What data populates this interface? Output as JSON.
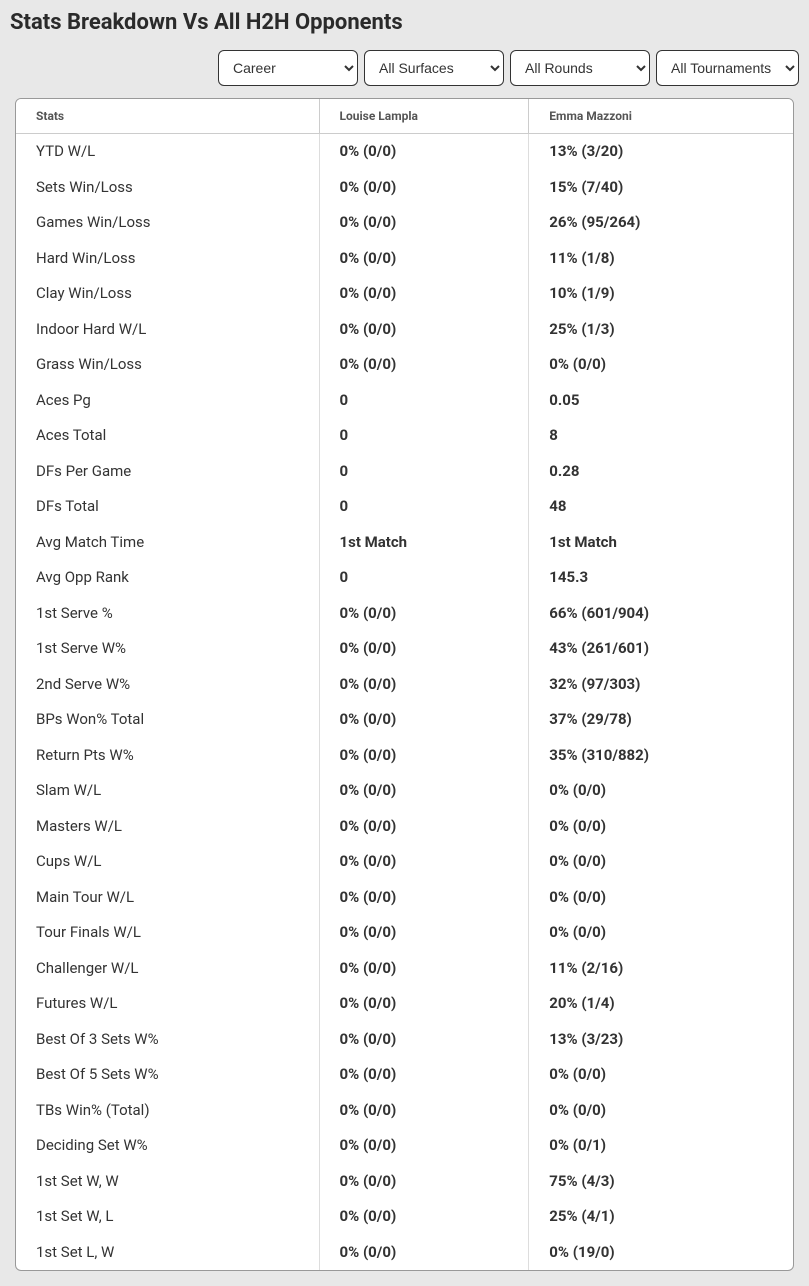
{
  "title": "Stats Breakdown Vs All H2H Opponents",
  "filters": {
    "period": {
      "selected": "Career"
    },
    "surface": {
      "selected": "All Surfaces"
    },
    "round": {
      "selected": "All Rounds"
    },
    "tournament": {
      "selected": "All Tournaments"
    }
  },
  "table": {
    "columns": {
      "stats": "Stats",
      "player1": "Louise Lampla",
      "player2": "Emma Mazzoni"
    },
    "rows": [
      {
        "label": "YTD W/L",
        "p1": "0% (0/0)",
        "p2": "13% (3/20)"
      },
      {
        "label": "Sets Win/Loss",
        "p1": "0% (0/0)",
        "p2": "15% (7/40)"
      },
      {
        "label": "Games Win/Loss",
        "p1": "0% (0/0)",
        "p2": "26% (95/264)"
      },
      {
        "label": "Hard Win/Loss",
        "p1": "0% (0/0)",
        "p2": "11% (1/8)"
      },
      {
        "label": "Clay Win/Loss",
        "p1": "0% (0/0)",
        "p2": "10% (1/9)"
      },
      {
        "label": "Indoor Hard W/L",
        "p1": "0% (0/0)",
        "p2": "25% (1/3)"
      },
      {
        "label": "Grass Win/Loss",
        "p1": "0% (0/0)",
        "p2": "0% (0/0)"
      },
      {
        "label": "Aces Pg",
        "p1": "0",
        "p2": "0.05"
      },
      {
        "label": "Aces Total",
        "p1": "0",
        "p2": "8"
      },
      {
        "label": "DFs Per Game",
        "p1": "0",
        "p2": "0.28"
      },
      {
        "label": "DFs Total",
        "p1": "0",
        "p2": "48"
      },
      {
        "label": "Avg Match Time",
        "p1": "1st Match",
        "p2": "1st Match"
      },
      {
        "label": "Avg Opp Rank",
        "p1": "0",
        "p2": "145.3"
      },
      {
        "label": "1st Serve %",
        "p1": "0% (0/0)",
        "p2": "66% (601/904)"
      },
      {
        "label": "1st Serve W%",
        "p1": "0% (0/0)",
        "p2": "43% (261/601)"
      },
      {
        "label": "2nd Serve W%",
        "p1": "0% (0/0)",
        "p2": "32% (97/303)"
      },
      {
        "label": "BPs Won% Total",
        "p1": "0% (0/0)",
        "p2": "37% (29/78)"
      },
      {
        "label": "Return Pts W%",
        "p1": "0% (0/0)",
        "p2": "35% (310/882)"
      },
      {
        "label": "Slam W/L",
        "p1": "0% (0/0)",
        "p2": "0% (0/0)"
      },
      {
        "label": "Masters W/L",
        "p1": "0% (0/0)",
        "p2": "0% (0/0)"
      },
      {
        "label": "Cups W/L",
        "p1": "0% (0/0)",
        "p2": "0% (0/0)"
      },
      {
        "label": "Main Tour W/L",
        "p1": "0% (0/0)",
        "p2": "0% (0/0)"
      },
      {
        "label": "Tour Finals W/L",
        "p1": "0% (0/0)",
        "p2": "0% (0/0)"
      },
      {
        "label": "Challenger W/L",
        "p1": "0% (0/0)",
        "p2": "11% (2/16)"
      },
      {
        "label": "Futures W/L",
        "p1": "0% (0/0)",
        "p2": "20% (1/4)"
      },
      {
        "label": "Best Of 3 Sets W%",
        "p1": "0% (0/0)",
        "p2": "13% (3/23)"
      },
      {
        "label": "Best Of 5 Sets W%",
        "p1": "0% (0/0)",
        "p2": "0% (0/0)"
      },
      {
        "label": "TBs Win% (Total)",
        "p1": "0% (0/0)",
        "p2": "0% (0/0)"
      },
      {
        "label": "Deciding Set W%",
        "p1": "0% (0/0)",
        "p2": "0% (0/1)"
      },
      {
        "label": "1st Set W, W",
        "p1": "0% (0/0)",
        "p2": "75% (4/3)"
      },
      {
        "label": "1st Set W, L",
        "p1": "0% (0/0)",
        "p2": "25% (4/1)"
      },
      {
        "label": "1st Set L, W",
        "p1": "0% (0/0)",
        "p2": "0% (19/0)"
      }
    ]
  },
  "colors": {
    "page_bg": "#e8e8e8",
    "card_bg": "#ffffff",
    "text_primary": "#333333",
    "text_muted": "#555555",
    "border": "#cccccc"
  }
}
